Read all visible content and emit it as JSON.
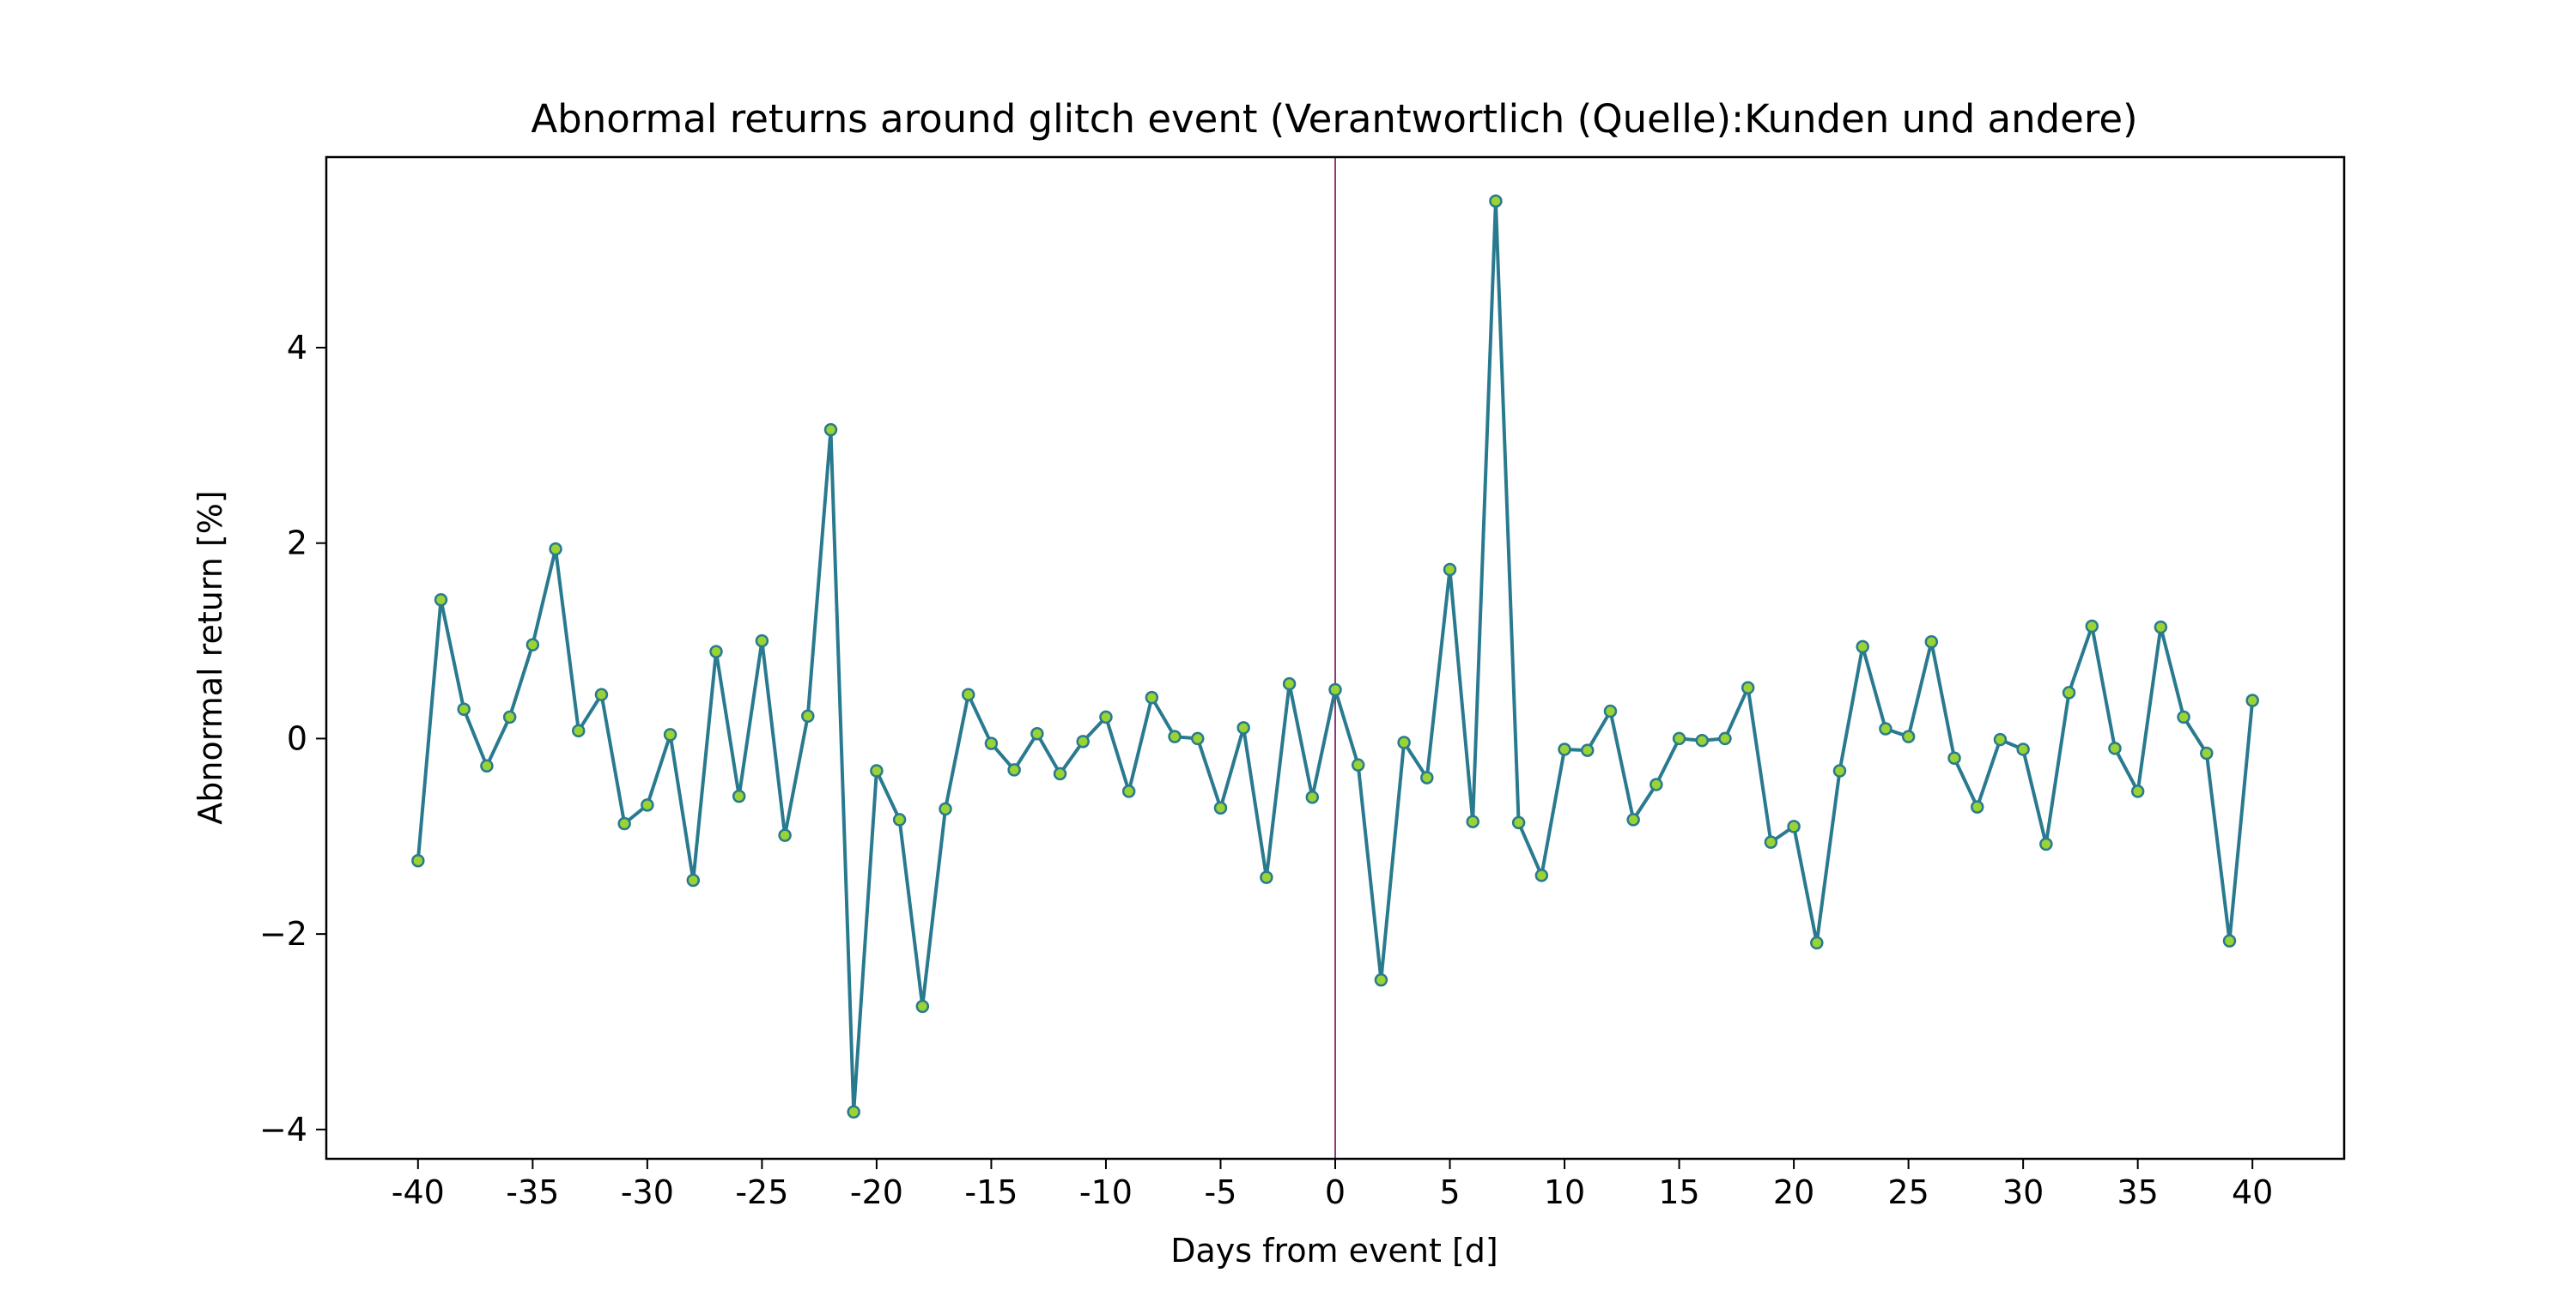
{
  "chart_data": {
    "type": "line",
    "title": "Abnormal returns around glitch event (Verantwortlich (Quelle):Kunden und andere)",
    "xlabel": "Days from event [d]",
    "ylabel": "Abnormal return [%]",
    "xlim": [
      -44,
      44
    ],
    "ylim": [
      -4.3,
      5.95
    ],
    "x_ticks": [
      -40,
      -35,
      -30,
      -25,
      -20,
      -15,
      -10,
      -5,
      0,
      5,
      10,
      15,
      20,
      25,
      30,
      35,
      40
    ],
    "x_tick_labels": [
      "-40",
      "-35",
      "-30",
      "-25",
      "-20",
      "-15",
      "-10",
      "-5",
      "0",
      "5",
      "10",
      "15",
      "20",
      "25",
      "30",
      "35",
      "40"
    ],
    "y_ticks": [
      -4,
      -2,
      0,
      2,
      4
    ],
    "y_tick_labels": [
      "−4",
      "−2",
      "0",
      "2",
      "4"
    ],
    "grid": false,
    "event_line": {
      "x": 0,
      "color": "#8b3a7a"
    },
    "line_color": "#2a7a8f",
    "marker_fill": "#9ad334",
    "marker_edge": "#2a7a8f",
    "series": [
      {
        "x": [
          -40,
          -39,
          -38,
          -37,
          -36,
          -35,
          -34,
          -33,
          -32,
          -31,
          -30,
          -29,
          -28,
          -27,
          -26,
          -25,
          -24,
          -23,
          -22,
          -21,
          -20,
          -19,
          -18,
          -17,
          -16,
          -15,
          -14,
          -13,
          -12,
          -11,
          -10,
          -9,
          -8,
          -7,
          -6,
          -5,
          -4,
          -3,
          -2,
          -1,
          0,
          1,
          2,
          3,
          4,
          5,
          6,
          7,
          8,
          9,
          10,
          11,
          12,
          13,
          14,
          15,
          16,
          17,
          18,
          19,
          20,
          21,
          22,
          23,
          24,
          25,
          26,
          27,
          28,
          29,
          30,
          31,
          32,
          33,
          34,
          35,
          36,
          37,
          38,
          39,
          40
        ],
        "values": [
          -1.25,
          1.42,
          0.3,
          -0.28,
          0.22,
          0.96,
          1.94,
          0.08,
          0.45,
          -0.87,
          -0.68,
          0.04,
          -1.45,
          0.89,
          -0.59,
          1.0,
          -0.99,
          0.23,
          3.16,
          -3.82,
          -0.33,
          -0.83,
          -2.74,
          -0.72,
          0.45,
          -0.05,
          -0.32,
          0.05,
          -0.36,
          -0.03,
          0.22,
          -0.54,
          0.42,
          0.02,
          0.0,
          -0.71,
          0.11,
          -1.42,
          0.56,
          -0.6,
          0.5,
          -0.27,
          -2.47,
          -0.04,
          -0.4,
          1.73,
          -0.85,
          5.5,
          -0.86,
          -1.4,
          -0.11,
          -0.12,
          0.28,
          -0.83,
          -0.47,
          0.0,
          -0.02,
          0.0,
          0.52,
          -1.06,
          -0.9,
          -2.09,
          -0.33,
          0.94,
          0.1,
          0.02,
          0.99,
          -0.2,
          -0.7,
          -0.01,
          -0.11,
          -1.08,
          0.47,
          1.15,
          -0.1,
          -0.54,
          1.14,
          0.22,
          -0.15,
          -2.07,
          0.39
        ]
      }
    ]
  }
}
